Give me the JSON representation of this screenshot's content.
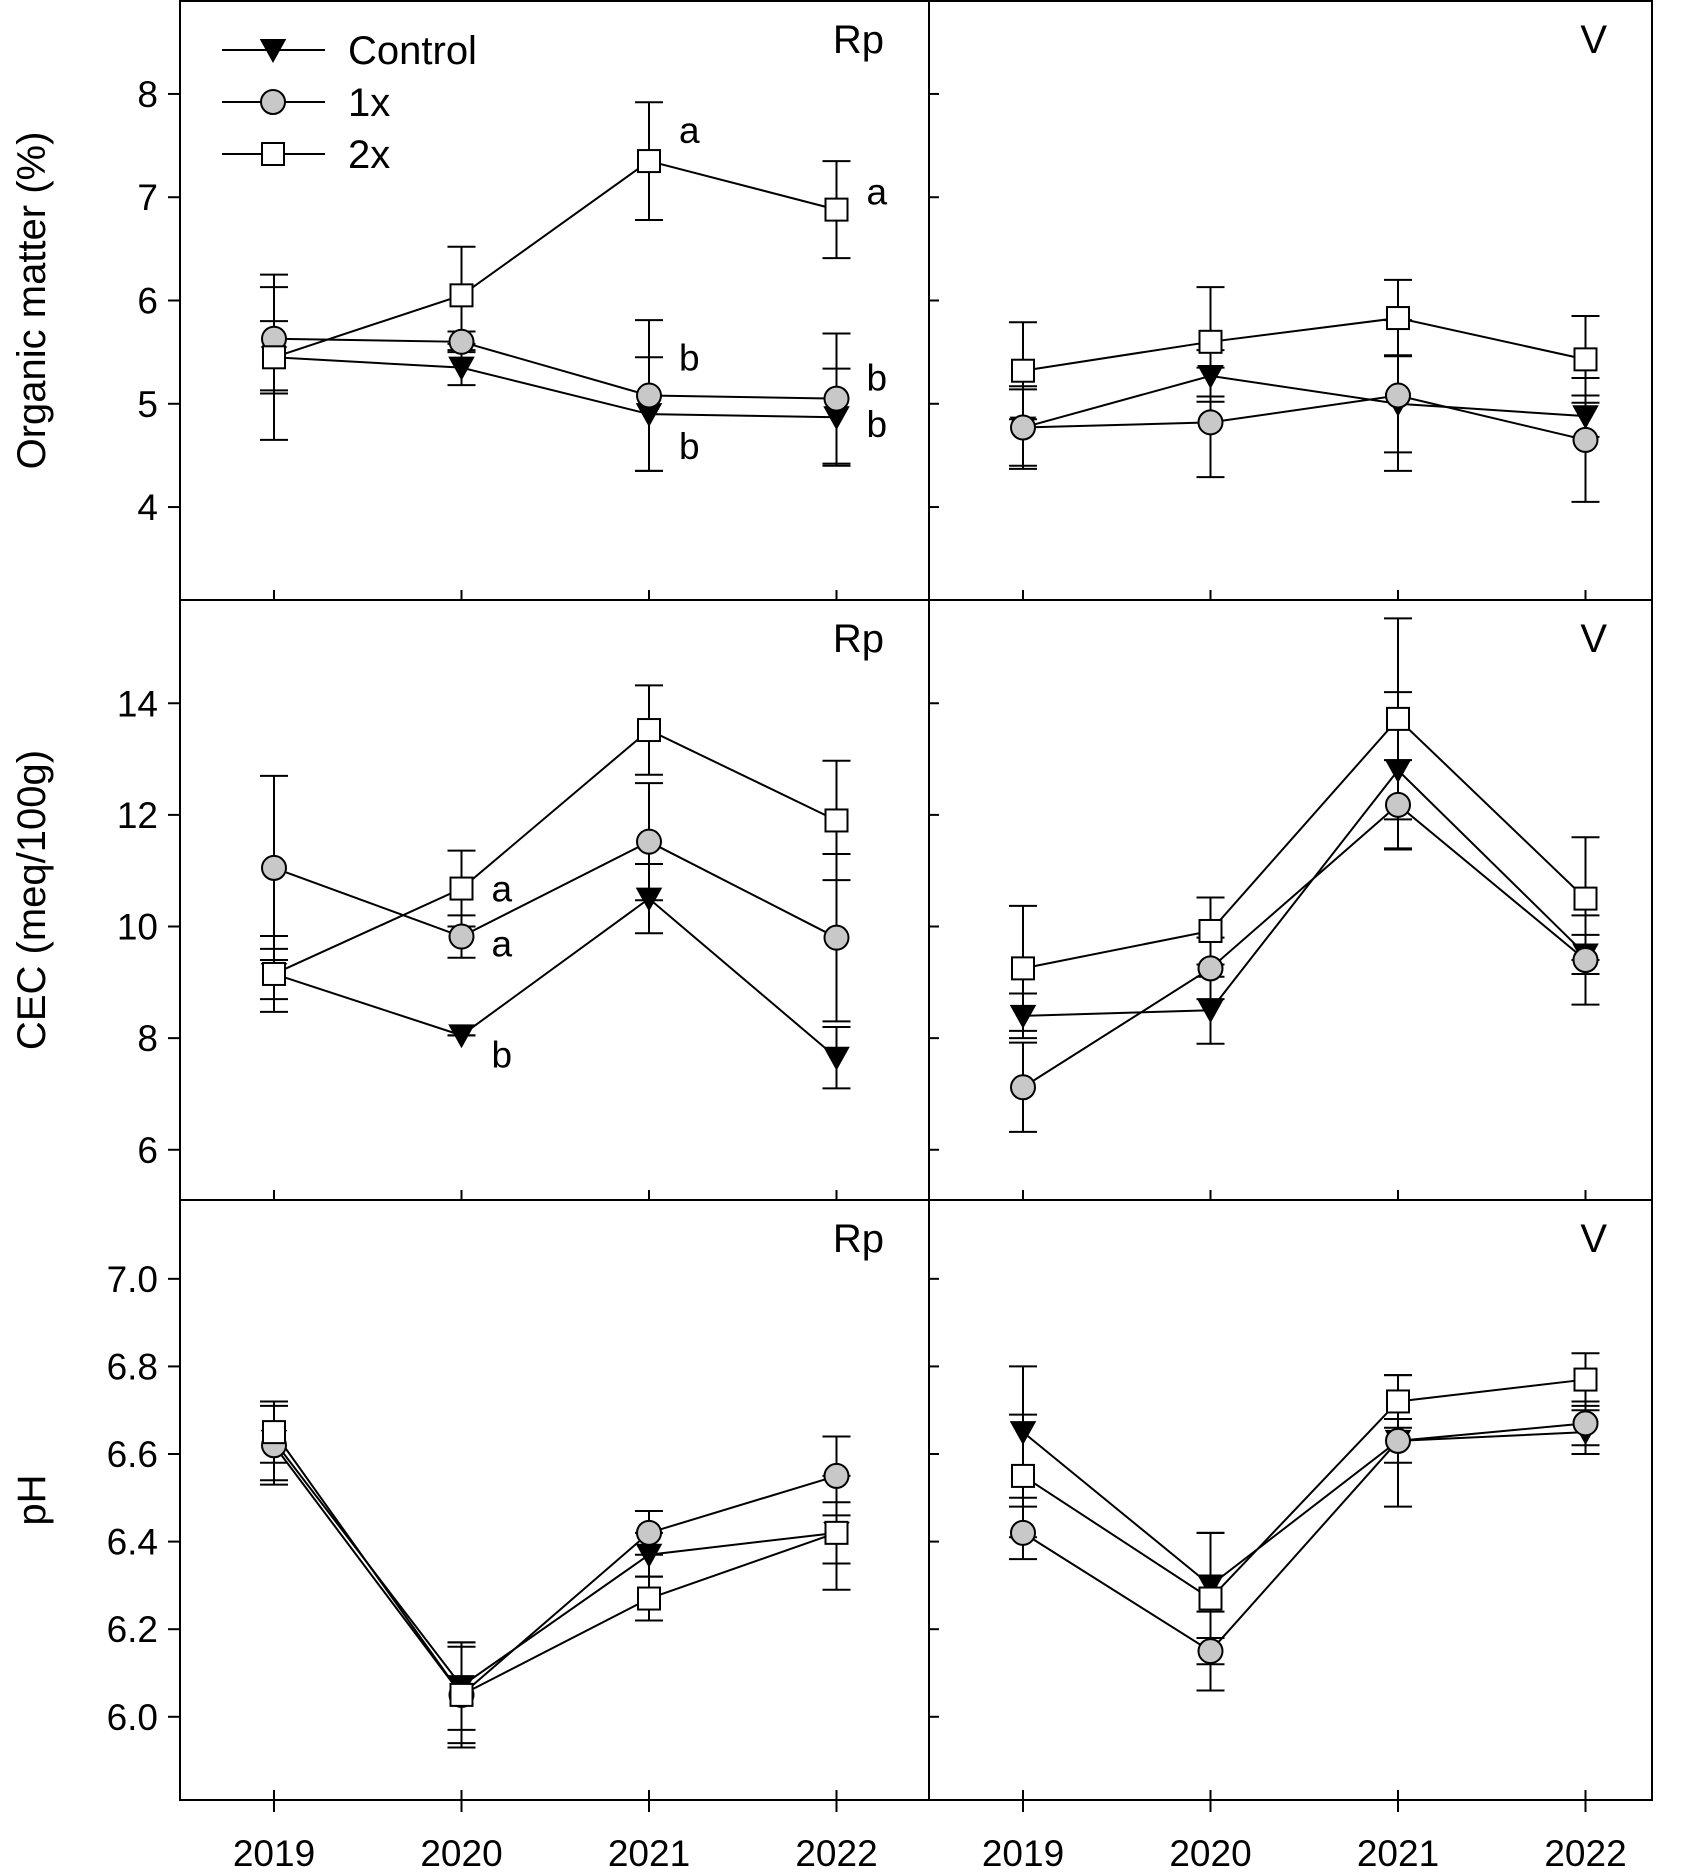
{
  "figure": {
    "legend": [
      "Control",
      "1x",
      "2x"
    ],
    "x_tick_labels": [
      "2019",
      "2020",
      "2021",
      "2022"
    ],
    "rows": [
      {
        "ylabel": "Organic matter (%)",
        "yticks": [
          "4",
          "5",
          "6",
          "7",
          "8"
        ]
      },
      {
        "ylabel": "CEC (meq/100g)",
        "yticks": [
          "6",
          "8",
          "10",
          "12",
          "14"
        ]
      },
      {
        "ylabel": "pH",
        "yticks": [
          "6.0",
          "6.2",
          "6.4",
          "6.6",
          "6.8",
          "7.0"
        ]
      }
    ],
    "columns": [
      "Rp",
      "V"
    ]
  },
  "chart_data": [
    {
      "type": "line",
      "panel": "Rp",
      "ylabel": "Organic matter (%)",
      "ylim": [
        3.1,
        8.9
      ],
      "x": [
        2019,
        2020,
        2021,
        2022
      ],
      "series": [
        {
          "name": "Control",
          "marker": "triangle-down",
          "values": [
            5.45,
            5.35,
            4.9,
            4.87
          ],
          "errors": [
            0.8,
            0.17,
            0.55,
            0.47
          ],
          "labels": [
            "",
            "",
            "b",
            "b"
          ]
        },
        {
          "name": "1x",
          "marker": "circle",
          "values": [
            5.63,
            5.6,
            5.08,
            5.05
          ],
          "errors": [
            0.5,
            0.1,
            0.73,
            0.63
          ],
          "labels": [
            "",
            "",
            "b",
            "b"
          ]
        },
        {
          "name": "2x",
          "marker": "square",
          "values": [
            5.45,
            6.05,
            7.35,
            6.88
          ],
          "errors": [
            0.35,
            0.47,
            0.57,
            0.47
          ],
          "labels": [
            "",
            "",
            "a",
            "a"
          ]
        }
      ]
    },
    {
      "type": "line",
      "panel": "V",
      "ylabel": "Organic matter (%)",
      "ylim": [
        3.1,
        8.9
      ],
      "x": [
        2019,
        2020,
        2021,
        2022
      ],
      "series": [
        {
          "name": "Control",
          "marker": "triangle-down",
          "values": [
            4.77,
            5.27,
            5.0,
            4.88
          ],
          "errors": [
            0.4,
            0.25,
            0.47,
            0.2
          ],
          "labels": [
            "",
            "",
            "",
            ""
          ]
        },
        {
          "name": "1x",
          "marker": "circle",
          "values": [
            4.77,
            4.82,
            5.08,
            4.65
          ],
          "errors": [
            0.37,
            0.53,
            0.73,
            0.6
          ],
          "labels": [
            "",
            "",
            "",
            ""
          ]
        },
        {
          "name": "2x",
          "marker": "square",
          "values": [
            5.32,
            5.6,
            5.83,
            5.43
          ],
          "errors": [
            0.47,
            0.53,
            0.37,
            0.42
          ],
          "labels": [
            "",
            "",
            "",
            ""
          ]
        }
      ]
    },
    {
      "type": "line",
      "panel": "Rp",
      "ylabel": "CEC (meq/100g)",
      "ylim": [
        5.1,
        15.85
      ],
      "x": [
        2019,
        2020,
        2021,
        2022
      ],
      "series": [
        {
          "name": "Control",
          "marker": "triangle-down",
          "values": [
            9.15,
            8.05,
            10.5,
            7.65
          ],
          "errors": [
            0.68,
            0.0,
            0.62,
            0.55
          ],
          "labels": [
            "",
            "b",
            "",
            ""
          ]
        },
        {
          "name": "1x",
          "marker": "circle",
          "values": [
            11.05,
            9.82,
            11.52,
            9.8
          ],
          "errors": [
            1.65,
            0.38,
            1.05,
            1.5
          ],
          "labels": [
            "",
            "a",
            "",
            ""
          ]
        },
        {
          "name": "2x",
          "marker": "square",
          "values": [
            9.15,
            10.68,
            13.52,
            11.9
          ],
          "errors": [
            0.45,
            0.68,
            0.8,
            1.07
          ],
          "labels": [
            "",
            "a",
            "",
            ""
          ]
        }
      ]
    },
    {
      "type": "line",
      "panel": "V",
      "ylabel": "CEC (meq/100g)",
      "ylim": [
        5.1,
        15.85
      ],
      "x": [
        2019,
        2020,
        2021,
        2022
      ],
      "series": [
        {
          "name": "Control",
          "marker": "triangle-down",
          "values": [
            8.4,
            8.5,
            12.8,
            9.5
          ],
          "errors": [
            0.4,
            0.6,
            1.4,
            0.35
          ],
          "labels": [
            "",
            "",
            "",
            ""
          ]
        },
        {
          "name": "1x",
          "marker": "circle",
          "values": [
            7.12,
            9.25,
            12.18,
            9.4
          ],
          "errors": [
            0.8,
            0.55,
            0.8,
            0.8
          ],
          "labels": [
            "",
            "",
            "",
            ""
          ]
        },
        {
          "name": "2x",
          "marker": "square",
          "values": [
            9.25,
            9.92,
            13.72,
            10.5
          ],
          "errors": [
            1.12,
            0.6,
            1.8,
            1.1
          ],
          "labels": [
            "",
            "",
            "",
            ""
          ]
        }
      ]
    },
    {
      "type": "line",
      "panel": "Rp",
      "ylabel": "pH",
      "ylim": [
        5.81,
        7.18
      ],
      "x": [
        2019,
        2020,
        2021,
        2022
      ],
      "series": [
        {
          "name": "Control",
          "marker": "triangle-down",
          "values": [
            6.63,
            6.07,
            6.37,
            6.42
          ],
          "errors": [
            0.09,
            0.1,
            0.05,
            0.07
          ],
          "labels": [
            "",
            "",
            "",
            ""
          ]
        },
        {
          "name": "1x",
          "marker": "circle",
          "values": [
            6.62,
            6.05,
            6.42,
            6.55
          ],
          "errors": [
            0.09,
            0.12,
            0.05,
            0.09
          ],
          "labels": [
            "",
            "",
            "",
            ""
          ]
        },
        {
          "name": "2x",
          "marker": "square",
          "values": [
            6.65,
            6.05,
            6.27,
            6.42
          ],
          "errors": [
            0.07,
            0.11,
            0.05,
            0.13
          ],
          "labels": [
            "",
            "",
            "",
            ""
          ]
        }
      ]
    },
    {
      "type": "line",
      "panel": "V",
      "ylabel": "pH",
      "ylim": [
        5.81,
        7.18
      ],
      "x": [
        2019,
        2020,
        2021,
        2022
      ],
      "series": [
        {
          "name": "Control",
          "marker": "triangle-down",
          "values": [
            6.65,
            6.3,
            6.63,
            6.65
          ],
          "errors": [
            0.15,
            0.12,
            0.15,
            0.05
          ],
          "labels": [
            "",
            "",
            "",
            ""
          ]
        },
        {
          "name": "1x",
          "marker": "circle",
          "values": [
            6.42,
            6.15,
            6.63,
            6.67
          ],
          "errors": [
            0.06,
            0.09,
            0.05,
            0.05
          ],
          "labels": [
            "",
            "",
            "",
            ""
          ]
        },
        {
          "name": "2x",
          "marker": "square",
          "values": [
            6.55,
            6.27,
            6.72,
            6.77
          ],
          "errors": [
            0.14,
            0.15,
            0.06,
            0.06
          ],
          "labels": [
            "",
            "",
            "",
            ""
          ]
        }
      ]
    }
  ]
}
